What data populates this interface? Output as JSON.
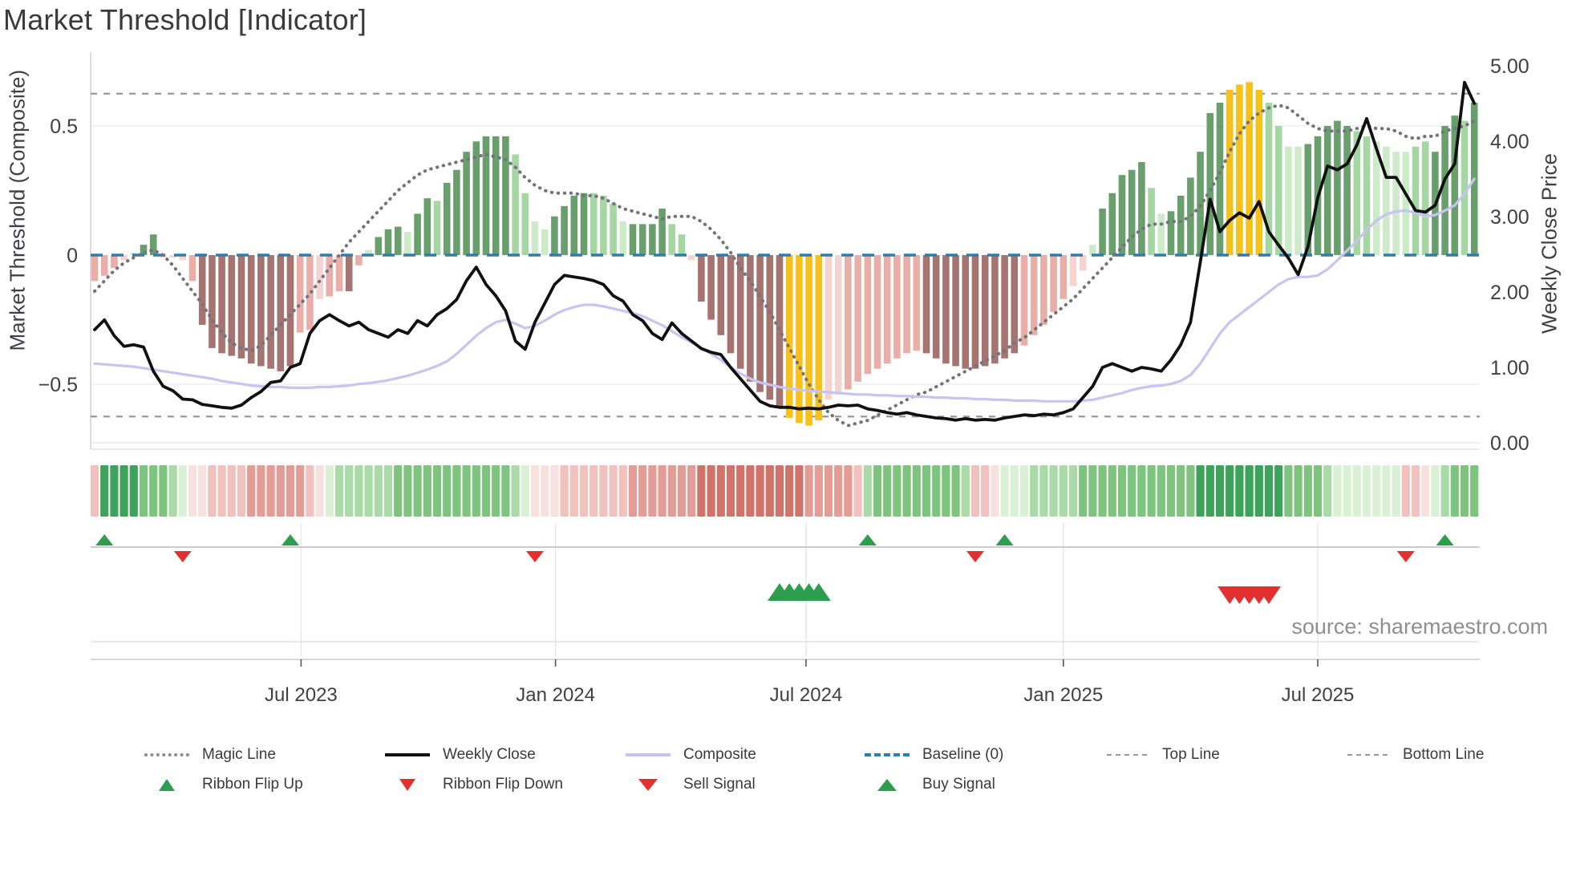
{
  "title": "Market Threshold [Indicator]",
  "source_note": "source: sharemaestro.com",
  "axes": {
    "left_title": "Market Threshold (Composite)",
    "right_title": "Weekly Close Price",
    "left_ticks": [
      {
        "label": "0.5",
        "v": 0.5
      },
      {
        "label": "0",
        "v": 0
      },
      {
        "label": "−0.5",
        "v": -0.5
      }
    ],
    "right_ticks": [
      {
        "label": "5.00",
        "v": 5
      },
      {
        "label": "4.00",
        "v": 4
      },
      {
        "label": "3.00",
        "v": 3
      },
      {
        "label": "2.00",
        "v": 2
      },
      {
        "label": "1.00",
        "v": 1
      },
      {
        "label": "0.00",
        "v": 0
      }
    ],
    "x_ticks": [
      {
        "label": "Jul 2023",
        "week": 21.1
      },
      {
        "label": "Jan 2024",
        "week": 47.1
      },
      {
        "label": "Jul 2024",
        "week": 72.7
      },
      {
        "label": "Jan 2025",
        "week": 99.0
      },
      {
        "label": "Jul 2025",
        "week": 125.0
      }
    ]
  },
  "legend": {
    "row1": [
      {
        "label": "Magic Line",
        "swatch": "dotted-gray"
      },
      {
        "label": "Weekly Close",
        "swatch": "solid-black"
      },
      {
        "label": "Composite",
        "swatch": "solid-lavender"
      },
      {
        "label": "Baseline (0)",
        "swatch": "dashed-blue"
      },
      {
        "label": "Top Line",
        "swatch": "dashed-gray"
      },
      {
        "label": "Bottom Line",
        "swatch": "dashed-gray"
      }
    ],
    "row2": [
      {
        "label": "Ribbon Flip Up",
        "swatch": "tri-up"
      },
      {
        "label": "Ribbon Flip Down",
        "swatch": "tri-down"
      },
      {
        "label": "Sell Signal",
        "swatch": "tri-down"
      },
      {
        "label": "Buy Signal",
        "swatch": "tri-up"
      }
    ]
  },
  "colors": {
    "bar": {
      "d": "#699e6d",
      "g": "#a6d6a4",
      "p": "#cdeac9",
      "G": "#f6c11b",
      "K": "#f3d4d0",
      "k": "#e9aea8",
      "r": "#a57470"
    },
    "ribbon": {
      "g3": "#3da35a",
      "g2": "#7ec47f",
      "g1": "#abdaa9",
      "g0": "#d9f0d5",
      "p0": "#f7e1df",
      "p1": "#f1c2bd",
      "p2": "#e29d96",
      "p3": "#d0736a"
    },
    "weekly_close": "#111111",
    "composite": "#c9c3f2",
    "magic": "#73737d",
    "baseline": "#2d7dad",
    "guide": "#96969c",
    "signal_up": "#2d9e4e",
    "signal_down": "#e22f2f",
    "grid": "#ededf3",
    "spine": "#cfcfd6",
    "text": "#3f3f46"
  },
  "chart_data": {
    "type": "combo",
    "title": "Market Threshold [Indicator]",
    "weeks": 142,
    "left_axis": {
      "label": "Market Threshold (Composite)",
      "range": [
        -0.77,
        0.79
      ]
    },
    "right_axis": {
      "label": "Weekly Close Price",
      "range": [
        0.0,
        5.0
      ]
    },
    "top_line": 0.625,
    "bottom_line": -0.625,
    "baseline": 0,
    "grid": true,
    "legend_position": "bottom",
    "bars": {
      "values": [
        -0.1,
        -0.08,
        -0.05,
        -0.02,
        0.01,
        0.04,
        0.08,
        -0.01,
        -0.01,
        -0.02,
        -0.1,
        -0.27,
        -0.36,
        -0.38,
        -0.39,
        -0.4,
        -0.42,
        -0.43,
        -0.44,
        -0.45,
        -0.43,
        -0.3,
        -0.29,
        -0.17,
        -0.16,
        -0.14,
        -0.14,
        -0.04,
        0.02,
        0.07,
        0.1,
        0.11,
        0.09,
        0.16,
        0.22,
        0.21,
        0.28,
        0.33,
        0.4,
        0.44,
        0.46,
        0.46,
        0.46,
        0.39,
        0.24,
        0.13,
        0.1,
        0.15,
        0.19,
        0.23,
        0.24,
        0.24,
        0.23,
        0.2,
        0.13,
        0.12,
        0.12,
        0.12,
        0.18,
        0.12,
        0.08,
        -0.02,
        -0.18,
        -0.25,
        -0.31,
        -0.38,
        -0.44,
        -0.49,
        -0.53,
        -0.56,
        -0.59,
        -0.63,
        -0.65,
        -0.66,
        -0.64,
        -0.56,
        -0.54,
        -0.52,
        -0.49,
        -0.46,
        -0.44,
        -0.42,
        -0.4,
        -0.38,
        -0.37,
        -0.38,
        -0.4,
        -0.42,
        -0.43,
        -0.44,
        -0.44,
        -0.43,
        -0.42,
        -0.4,
        -0.38,
        -0.35,
        -0.31,
        -0.27,
        -0.22,
        -0.17,
        -0.12,
        -0.06,
        0.04,
        0.18,
        0.24,
        0.31,
        0.33,
        0.36,
        0.26,
        0.16,
        0.17,
        0.23,
        0.3,
        0.4,
        0.55,
        0.59,
        0.64,
        0.66,
        0.67,
        0.64,
        0.59,
        0.5,
        0.42,
        0.42,
        0.43,
        0.46,
        0.5,
        0.52,
        0.5,
        0.48,
        0.46,
        0.44,
        0.42,
        0.4,
        0.4,
        0.42,
        0.44,
        0.4,
        0.5,
        0.54,
        0.52,
        0.59
      ],
      "classes": [
        "k",
        "k",
        "k",
        "K",
        "p",
        "d",
        "d",
        "K",
        "K",
        "K",
        "k",
        "r",
        "r",
        "r",
        "r",
        "r",
        "r",
        "r",
        "r",
        "r",
        "r",
        "k",
        "k",
        "K",
        "k",
        "k",
        "r",
        "k",
        "p",
        "d",
        "d",
        "d",
        "p",
        "d",
        "d",
        "g",
        "d",
        "d",
        "d",
        "d",
        "d",
        "d",
        "d",
        "g",
        "g",
        "p",
        "p",
        "d",
        "d",
        "d",
        "d",
        "g",
        "g",
        "g",
        "p",
        "d",
        "d",
        "d",
        "d",
        "g",
        "g",
        "K",
        "r",
        "r",
        "r",
        "r",
        "r",
        "r",
        "r",
        "r",
        "r",
        "G",
        "G",
        "G",
        "G",
        "K",
        "K",
        "k",
        "k",
        "k",
        "k",
        "k",
        "k",
        "k",
        "k",
        "r",
        "r",
        "r",
        "r",
        "r",
        "r",
        "r",
        "r",
        "r",
        "r",
        "k",
        "k",
        "k",
        "k",
        "k",
        "K",
        "K",
        "p",
        "d",
        "d",
        "d",
        "d",
        "d",
        "g",
        "p",
        "d",
        "d",
        "d",
        "d",
        "d",
        "d",
        "G",
        "G",
        "G",
        "G",
        "g",
        "g",
        "p",
        "p",
        "d",
        "d",
        "d",
        "d",
        "d",
        "g",
        "g",
        "p",
        "p",
        "p",
        "p",
        "g",
        "g",
        "d",
        "d",
        "d",
        "g",
        "d"
      ]
    },
    "weekly_close": [
      1.5,
      1.63,
      1.42,
      1.28,
      1.3,
      1.27,
      0.95,
      0.75,
      0.69,
      0.58,
      0.57,
      0.51,
      0.49,
      0.47,
      0.46,
      0.5,
      0.6,
      0.68,
      0.8,
      0.82,
      1.0,
      1.05,
      1.45,
      1.62,
      1.7,
      1.62,
      1.55,
      1.6,
      1.5,
      1.45,
      1.4,
      1.5,
      1.45,
      1.62,
      1.55,
      1.7,
      1.78,
      1.9,
      2.15,
      2.33,
      2.1,
      1.95,
      1.75,
      1.35,
      1.24,
      1.6,
      1.85,
      2.1,
      2.22,
      2.2,
      2.18,
      2.15,
      2.1,
      1.95,
      1.88,
      1.7,
      1.62,
      1.45,
      1.37,
      1.59,
      1.45,
      1.35,
      1.25,
      1.2,
      1.17,
      1.0,
      0.85,
      0.7,
      0.55,
      0.49,
      0.47,
      0.47,
      0.45,
      0.46,
      0.45,
      0.47,
      0.5,
      0.49,
      0.5,
      0.45,
      0.43,
      0.4,
      0.38,
      0.4,
      0.37,
      0.35,
      0.33,
      0.32,
      0.3,
      0.32,
      0.3,
      0.31,
      0.3,
      0.33,
      0.35,
      0.37,
      0.36,
      0.38,
      0.37,
      0.4,
      0.45,
      0.6,
      0.75,
      1.0,
      1.05,
      1.0,
      0.95,
      1.0,
      0.98,
      0.95,
      1.1,
      1.3,
      1.6,
      2.4,
      3.23,
      2.8,
      2.95,
      3.05,
      2.98,
      3.2,
      2.8,
      2.62,
      2.45,
      2.23,
      2.6,
      3.25,
      3.67,
      3.62,
      3.7,
      3.95,
      4.3,
      3.9,
      3.52,
      3.52,
      3.3,
      3.08,
      3.06,
      3.15,
      3.5,
      3.7,
      4.78,
      4.5
    ],
    "composite": [
      1.05,
      1.04,
      1.03,
      1.02,
      1.01,
      0.99,
      0.97,
      0.95,
      0.93,
      0.91,
      0.89,
      0.87,
      0.85,
      0.82,
      0.8,
      0.78,
      0.76,
      0.75,
      0.74,
      0.74,
      0.73,
      0.73,
      0.73,
      0.74,
      0.74,
      0.75,
      0.76,
      0.78,
      0.79,
      0.81,
      0.83,
      0.86,
      0.89,
      0.93,
      0.97,
      1.02,
      1.08,
      1.18,
      1.3,
      1.42,
      1.52,
      1.6,
      1.63,
      1.58,
      1.52,
      1.55,
      1.62,
      1.7,
      1.76,
      1.8,
      1.83,
      1.83,
      1.81,
      1.78,
      1.75,
      1.72,
      1.68,
      1.62,
      1.56,
      1.48,
      1.4,
      1.33,
      1.26,
      1.18,
      1.1,
      1.0,
      0.92,
      0.85,
      0.8,
      0.77,
      0.74,
      0.72,
      0.7,
      0.69,
      0.68,
      0.67,
      0.66,
      0.65,
      0.64,
      0.64,
      0.63,
      0.63,
      0.62,
      0.62,
      0.61,
      0.61,
      0.6,
      0.6,
      0.59,
      0.59,
      0.58,
      0.58,
      0.57,
      0.57,
      0.56,
      0.56,
      0.56,
      0.55,
      0.55,
      0.55,
      0.55,
      0.56,
      0.57,
      0.6,
      0.63,
      0.66,
      0.7,
      0.73,
      0.75,
      0.76,
      0.78,
      0.82,
      0.9,
      1.05,
      1.25,
      1.45,
      1.6,
      1.7,
      1.8,
      1.9,
      2.0,
      2.1,
      2.17,
      2.2,
      2.2,
      2.22,
      2.3,
      2.42,
      2.55,
      2.68,
      2.82,
      2.95,
      3.03,
      3.07,
      3.08,
      3.05,
      3.0,
      3.02,
      3.08,
      3.15,
      3.3,
      3.5
    ],
    "magic_line": [
      -0.14,
      -0.1,
      -0.06,
      -0.03,
      -0.01,
      0.01,
      0.02,
      0.0,
      -0.04,
      -0.09,
      -0.14,
      -0.19,
      -0.25,
      -0.3,
      -0.34,
      -0.36,
      -0.37,
      -0.35,
      -0.31,
      -0.27,
      -0.23,
      -0.19,
      -0.15,
      -0.1,
      -0.05,
      0.0,
      0.05,
      0.09,
      0.13,
      0.17,
      0.21,
      0.25,
      0.28,
      0.31,
      0.33,
      0.34,
      0.35,
      0.36,
      0.37,
      0.38,
      0.39,
      0.38,
      0.37,
      0.34,
      0.3,
      0.27,
      0.25,
      0.24,
      0.24,
      0.24,
      0.23,
      0.23,
      0.22,
      0.2,
      0.18,
      0.17,
      0.16,
      0.15,
      0.14,
      0.15,
      0.15,
      0.15,
      0.13,
      0.1,
      0.06,
      0.01,
      -0.05,
      -0.1,
      -0.16,
      -0.22,
      -0.29,
      -0.36,
      -0.43,
      -0.5,
      -0.56,
      -0.61,
      -0.64,
      -0.66,
      -0.65,
      -0.64,
      -0.62,
      -0.6,
      -0.58,
      -0.56,
      -0.54,
      -0.53,
      -0.51,
      -0.49,
      -0.47,
      -0.45,
      -0.43,
      -0.41,
      -0.39,
      -0.37,
      -0.34,
      -0.32,
      -0.29,
      -0.26,
      -0.23,
      -0.2,
      -0.17,
      -0.13,
      -0.09,
      -0.05,
      -0.01,
      0.03,
      0.07,
      0.1,
      0.12,
      0.12,
      0.13,
      0.13,
      0.15,
      0.19,
      0.25,
      0.32,
      0.4,
      0.47,
      0.52,
      0.55,
      0.57,
      0.58,
      0.57,
      0.54,
      0.51,
      0.49,
      0.48,
      0.48,
      0.48,
      0.49,
      0.5,
      0.49,
      0.49,
      0.48,
      0.46,
      0.45,
      0.46,
      0.46,
      0.48,
      0.49,
      0.5,
      0.52
    ],
    "ribbon": [
      "p1",
      "g3",
      "g3",
      "g3",
      "g3",
      "g2",
      "g2",
      "g2",
      "g1",
      "g0",
      "p0",
      "p0",
      "p1",
      "p1",
      "p1",
      "p1",
      "p2",
      "p2",
      "p2",
      "p2",
      "p2",
      "p2",
      "p1",
      "p0",
      "g0",
      "g1",
      "g1",
      "g1",
      "g1",
      "g1",
      "g1",
      "g2",
      "g2",
      "g2",
      "g2",
      "g2",
      "g2",
      "g2",
      "g2",
      "g2",
      "g2",
      "g2",
      "g2",
      "g1",
      "g0",
      "p0",
      "p0",
      "p0",
      "p1",
      "p1",
      "p1",
      "p1",
      "p1",
      "p1",
      "p1",
      "p2",
      "p2",
      "p2",
      "p2",
      "p2",
      "p2",
      "p2",
      "p3",
      "p3",
      "p3",
      "p3",
      "p3",
      "p3",
      "p3",
      "p3",
      "p3",
      "p3",
      "p3",
      "p2",
      "p2",
      "p2",
      "p2",
      "p2",
      "p1",
      "g1",
      "g2",
      "g2",
      "g2",
      "g2",
      "g2",
      "g2",
      "g2",
      "g2",
      "g2",
      "g1",
      "p1",
      "p1",
      "p0",
      "g0",
      "g0",
      "g0",
      "g1",
      "g1",
      "g1",
      "g1",
      "g1",
      "g2",
      "g2",
      "g2",
      "g2",
      "g2",
      "g2",
      "g2",
      "g2",
      "g2",
      "g2",
      "g2",
      "g2",
      "g3",
      "g3",
      "g3",
      "g3",
      "g3",
      "g3",
      "g3",
      "g3",
      "g3",
      "g2",
      "g2",
      "g2",
      "g2",
      "g1",
      "g0",
      "g0",
      "g0",
      "g0",
      "g0",
      "g0",
      "g0",
      "p1",
      "p1",
      "p0",
      "g0",
      "g1",
      "g2",
      "g2",
      "g2"
    ],
    "signals": {
      "ribbon_flip_up_weeks": [
        1,
        20,
        79,
        93,
        138
      ],
      "ribbon_flip_down_weeks": [
        9,
        45,
        90,
        134
      ],
      "buy_signal_weeks": [
        70,
        71,
        72,
        73,
        74
      ],
      "sell_signal_weeks": [
        116,
        117,
        118,
        119,
        120
      ]
    }
  }
}
